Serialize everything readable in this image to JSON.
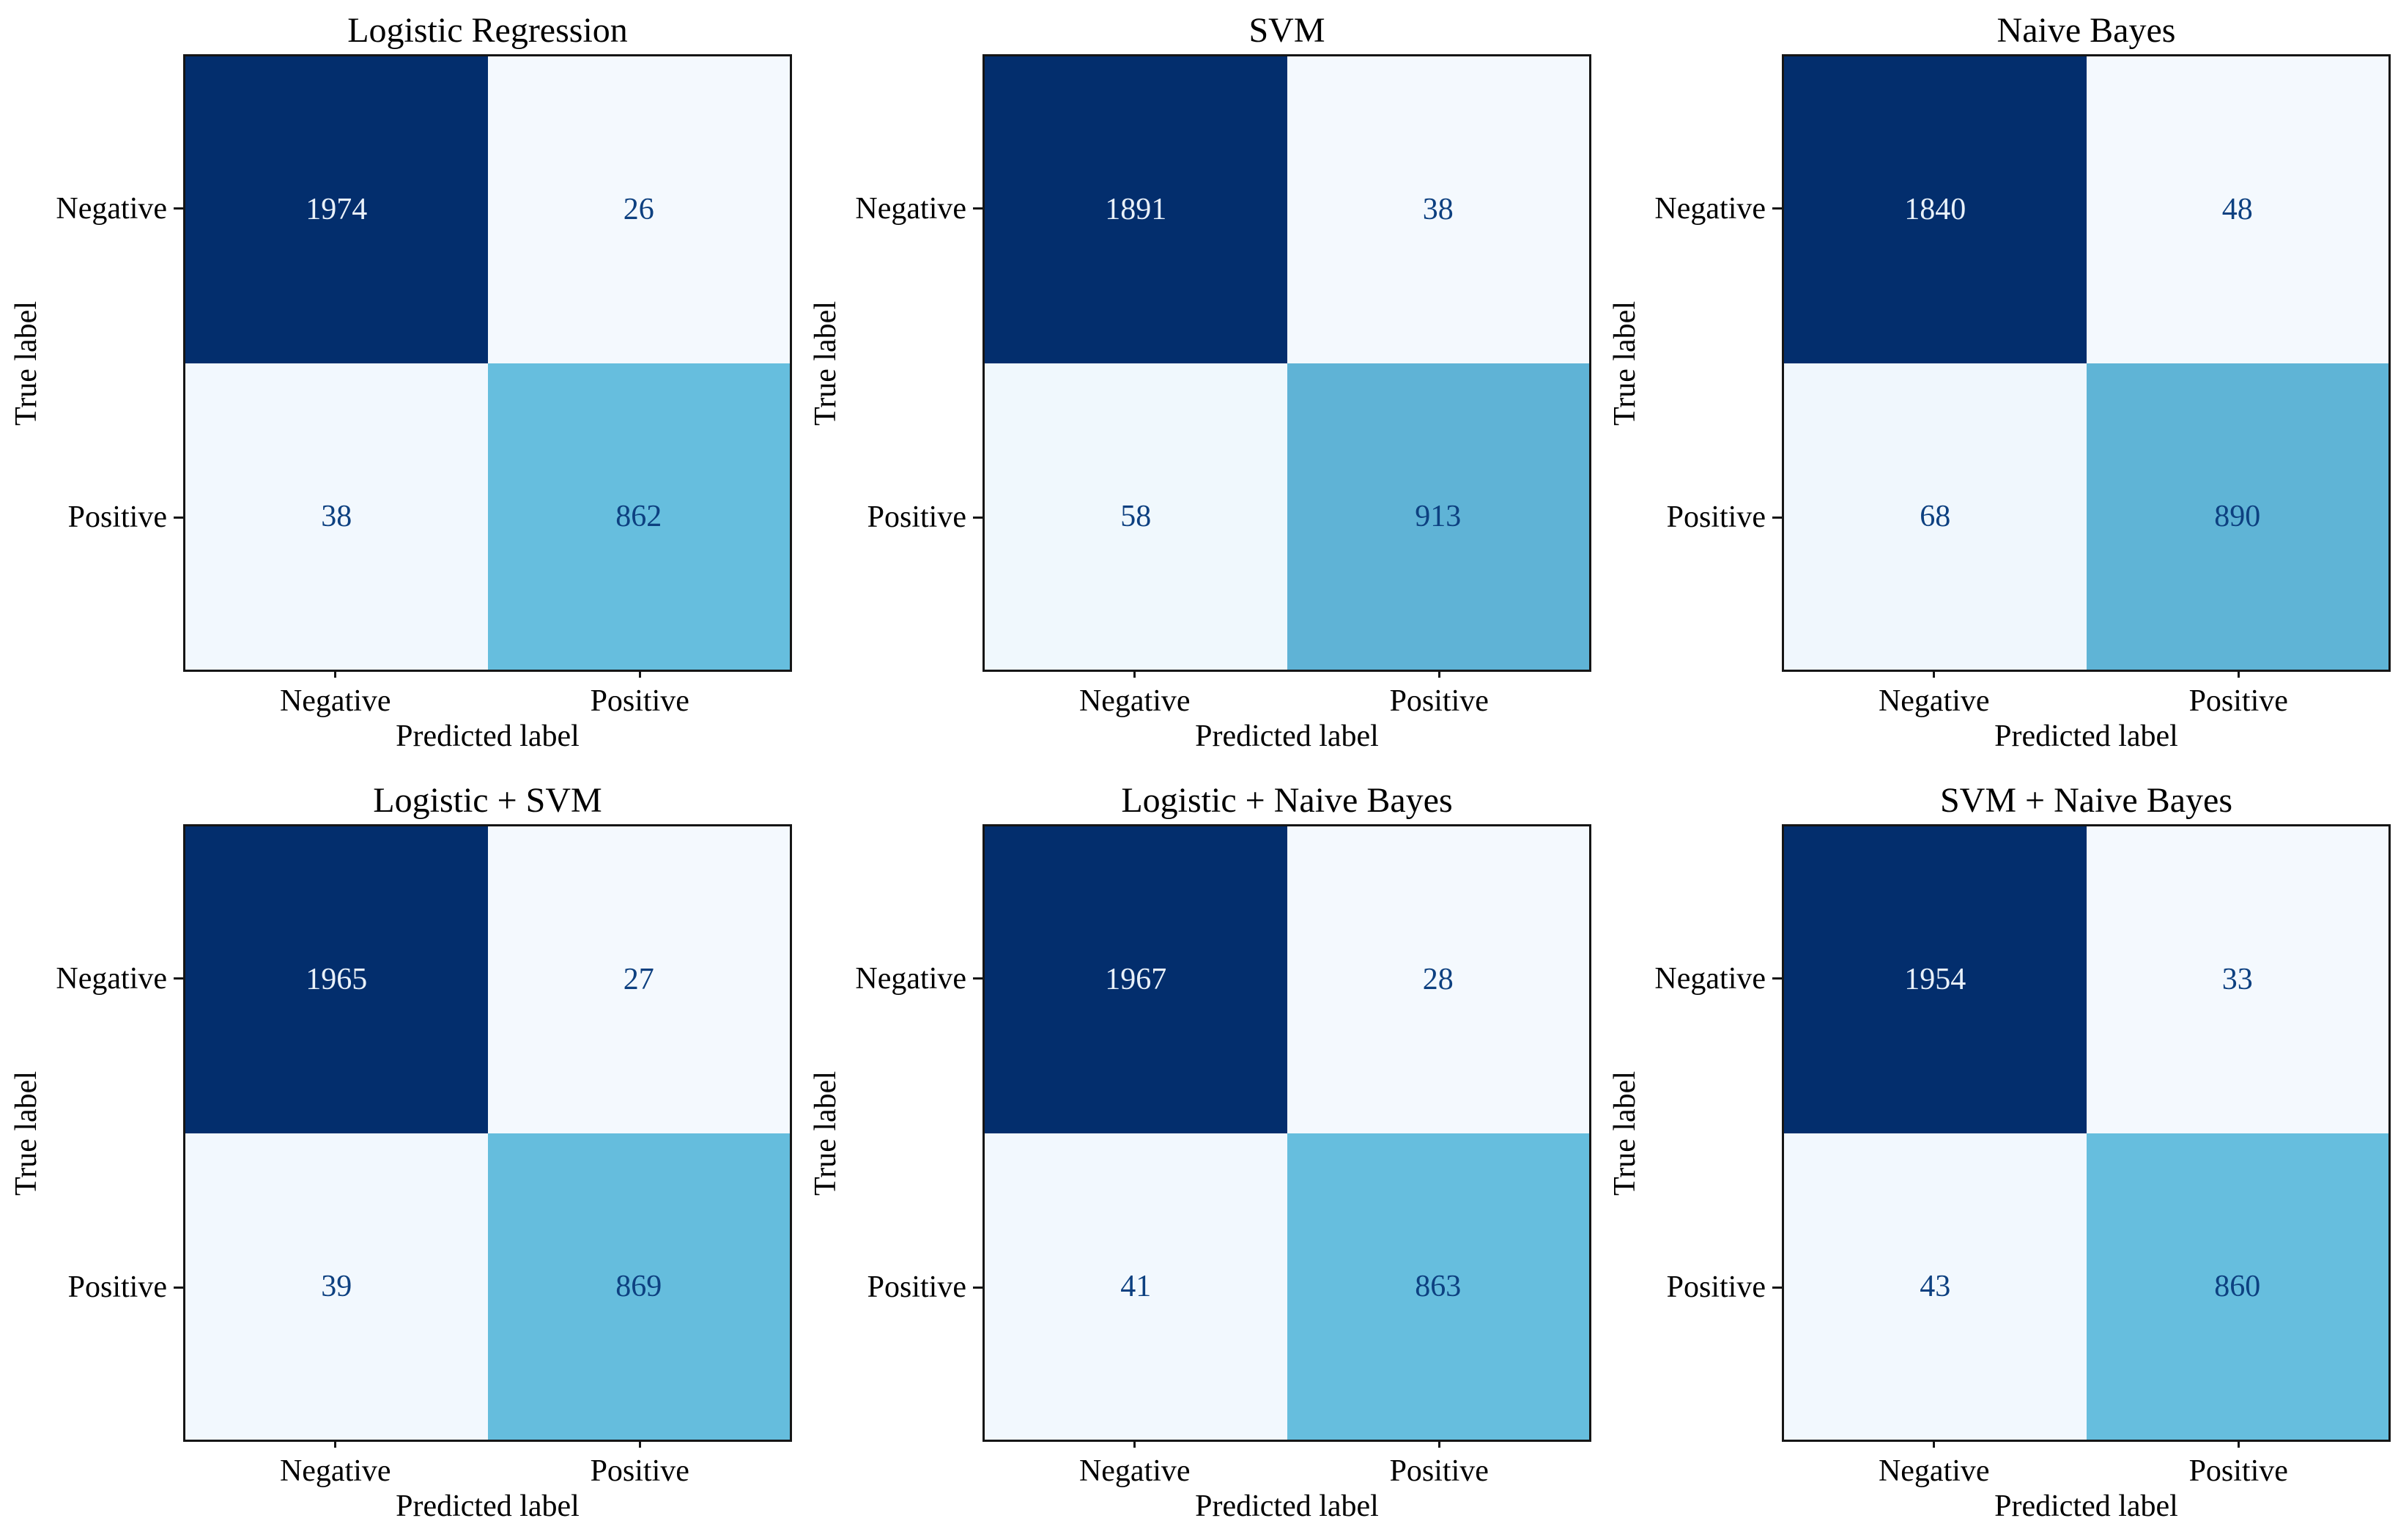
{
  "figure": {
    "layout": "2x3-grid-of-confusion-matrices",
    "xlabel": "Predicted label",
    "ylabel": "True label",
    "classes": [
      "Negative",
      "Positive"
    ]
  },
  "colors": {
    "colormap_stops": [
      [
        0,
        "#f4f9fe"
      ],
      [
        0.43,
        "#66bede"
      ],
      [
        1,
        "#032e6d"
      ]
    ],
    "text_on_dark": "#e9f1f9",
    "text_on_light": "#0d4080",
    "axis_color": "#151515",
    "background": "#ffffff"
  },
  "chart_data": [
    {
      "type": "heatmap",
      "title": "Logistic Regression",
      "rows": [
        "Negative",
        "Positive"
      ],
      "cols": [
        "Negative",
        "Positive"
      ],
      "values": [
        [
          1974,
          26
        ],
        [
          38,
          862
        ]
      ],
      "xlabel": "Predicted label",
      "ylabel": "True label"
    },
    {
      "type": "heatmap",
      "title": "SVM",
      "rows": [
        "Negative",
        "Positive"
      ],
      "cols": [
        "Negative",
        "Positive"
      ],
      "values": [
        [
          1891,
          38
        ],
        [
          58,
          913
        ]
      ],
      "xlabel": "Predicted label",
      "ylabel": "True label"
    },
    {
      "type": "heatmap",
      "title": "Naive Bayes",
      "rows": [
        "Negative",
        "Positive"
      ],
      "cols": [
        "Negative",
        "Positive"
      ],
      "values": [
        [
          1840,
          48
        ],
        [
          68,
          890
        ]
      ],
      "xlabel": "Predicted label",
      "ylabel": "True label"
    },
    {
      "type": "heatmap",
      "title": "Logistic + SVM",
      "rows": [
        "Negative",
        "Positive"
      ],
      "cols": [
        "Negative",
        "Positive"
      ],
      "values": [
        [
          1965,
          27
        ],
        [
          39,
          869
        ]
      ],
      "xlabel": "Predicted label",
      "ylabel": "True label"
    },
    {
      "type": "heatmap",
      "title": "Logistic + Naive Bayes",
      "rows": [
        "Negative",
        "Positive"
      ],
      "cols": [
        "Negative",
        "Positive"
      ],
      "values": [
        [
          1967,
          28
        ],
        [
          41,
          863
        ]
      ],
      "xlabel": "Predicted label",
      "ylabel": "True label"
    },
    {
      "type": "heatmap",
      "title": "SVM + Naive Bayes",
      "rows": [
        "Negative",
        "Positive"
      ],
      "cols": [
        "Negative",
        "Positive"
      ],
      "values": [
        [
          1954,
          33
        ],
        [
          43,
          860
        ]
      ],
      "xlabel": "Predicted label",
      "ylabel": "True label"
    }
  ]
}
